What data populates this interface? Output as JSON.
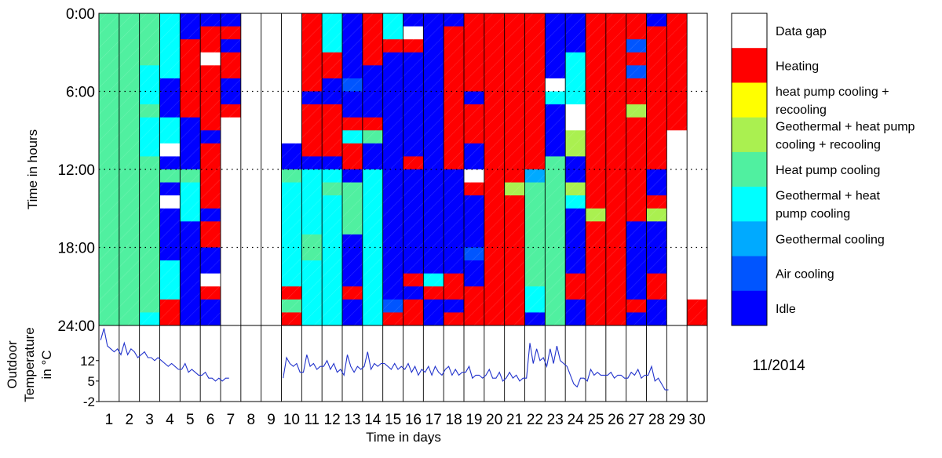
{
  "chart_data": {
    "type": "heatmap",
    "month_label": "11/2014",
    "ylabel_top": "Time in hours",
    "ylabel_bottom": [
      "Outdoor",
      "Temperature",
      "in °C"
    ],
    "xlabel": "Time in days",
    "y_ticks": [
      "0:00",
      "6:00",
      "12:00",
      "18:00",
      "24:00"
    ],
    "temp_ticks": [
      "12",
      "5",
      "-2"
    ],
    "temp_range": [
      -2,
      24
    ],
    "day_labels": [
      "1",
      "2",
      "3",
      "4",
      "5",
      "6",
      "7",
      "8",
      "9",
      "10",
      "11",
      "12",
      "13",
      "14",
      "15",
      "16",
      "17",
      "18",
      "19",
      "20",
      "21",
      "22",
      "23",
      "24",
      "25",
      "26",
      "27",
      "28",
      "29",
      "30"
    ],
    "legend": [
      {
        "key": "G",
        "label_lines": [
          "Data gap"
        ],
        "color": "#ffffff"
      },
      {
        "key": "H",
        "label_lines": [
          "Heating"
        ],
        "color": "#ff0000"
      },
      {
        "key": "Y",
        "label_lines": [
          "heat pump cooling +",
          "recooling"
        ],
        "color": "#ffff00"
      },
      {
        "key": "L",
        "label_lines": [
          "Geothermal + heat pump",
          "cooling + recooling"
        ],
        "color": "#aaf050"
      },
      {
        "key": "P",
        "label_lines": [
          "Heat pump cooling"
        ],
        "color": "#50f0a0"
      },
      {
        "key": "C",
        "label_lines": [
          "Geothermal + heat",
          "pump cooling"
        ],
        "color": "#00ffff"
      },
      {
        "key": "S",
        "label_lines": [
          "Geothermal cooling"
        ],
        "color": "#00aaff"
      },
      {
        "key": "A",
        "label_lines": [
          "Air cooling"
        ],
        "color": "#0055ff"
      },
      {
        "key": "I",
        "label_lines": [
          "Idle"
        ],
        "color": "#0000ff"
      }
    ],
    "slots_per_day": 24,
    "days": [
      "PPPPPPPPPPPPPPPPPPPPPPPP",
      "PPPPPPPPPPPPPPPPPPPPPPPP",
      "PPPPCCCPCCCPPPPPPPPPPPPC",
      "CCCCCIIICCGIPIGIIIICCCHH",
      "IIHHHHHHIIIIPCCCIIIIIIII",
      "IHHGHHHHHIHHHHHIHHIIGHII",
      "IHIHHIIHGGGGGGGGGGGGGGGG",
      "GGGGGGGGGGGGGGGGGGGGGGGG",
      "GGGGGGGGGGGGGGGGGGGGGGGG",
      "GGGGGGGGGGIIPCCCCCCCCHPH",
      "HHHHHHIHHHHICCCCCPPCCCCC",
      "CCCHHIIHHHHICPCCCCCCCCCC",
      "IIIIIAIIHCHHIPPPPIIIIHII",
      "HHHHIIIIHPIICCCCCCCCCCCC",
      "CCHIIIIIIIIIIIIIIIIIIIAH",
      "IGHIIIIIIIIHIIIIIIIIHIHH",
      "IIIIIIIIIIIIIIIIIIIICHII",
      "IHHHHHHHHHHHIIIIIIIIHHIH",
      "HHHHHHIHHHIIGHIIIIAIIHHH",
      "HHHHHHHHHHHHHHHHHHHHHHHH",
      "HHHHHHHHHHHHHLHHHHHHHHHH",
      "HHHHHHHHHHHHSPPPPPPPPCCI",
      "IIIIIGCIIIIPPPPPPPPPPPPP",
      "IIICCCCGGLLIILCIIIIIHHII",
      "HHHHHHHHHHHHHHHLHHHHHHHH",
      "HHHHHHHHHHHHHHHHHHHHHHHH",
      "HHAHAHHLHHHHHHHHIIIIIIHI",
      "IHHHHHHHHHHHIIHLIIIIHHII",
      "HHHHHHHHHGGGGGGGGGGGGGGG",
      "GGGGGGGGGGGGGGGGGGGGGGHH"
    ],
    "temperature": [
      {
        "day": 1,
        "values": [
          19,
          23,
          17,
          16,
          15,
          16
        ]
      },
      {
        "day": 2,
        "values": [
          14,
          18,
          14,
          16,
          15,
          13
        ]
      },
      {
        "day": 3,
        "values": [
          14,
          15,
          13,
          13,
          12,
          13
        ]
      },
      {
        "day": 4,
        "values": [
          12,
          11,
          10,
          11,
          10,
          9
        ]
      },
      {
        "day": 5,
        "values": [
          9,
          11,
          8,
          9,
          8,
          7
        ]
      },
      {
        "day": 6,
        "values": [
          7,
          8,
          6,
          6,
          5,
          6
        ]
      },
      {
        "day": 7,
        "values": [
          5,
          6,
          6
        ]
      },
      {
        "day": 10,
        "values": [
          6,
          13,
          11,
          10,
          11,
          8
        ]
      },
      {
        "day": 11,
        "values": [
          8,
          14,
          10,
          11,
          9,
          10
        ]
      },
      {
        "day": 12,
        "values": [
          10,
          12,
          9,
          11,
          8,
          9
        ]
      },
      {
        "day": 13,
        "values": [
          7,
          14,
          10,
          8,
          10,
          9
        ]
      },
      {
        "day": 14,
        "values": [
          10,
          15,
          9,
          11,
          10,
          11
        ]
      },
      {
        "day": 15,
        "values": [
          11,
          10,
          9,
          11,
          9,
          10
        ]
      },
      {
        "day": 16,
        "values": [
          9,
          11,
          8,
          10,
          7,
          9
        ]
      },
      {
        "day": 17,
        "values": [
          8,
          10,
          7,
          10,
          8,
          7
        ]
      },
      {
        "day": 18,
        "values": [
          9,
          10,
          7,
          9,
          7,
          8
        ]
      },
      {
        "day": 19,
        "values": [
          8,
          10,
          6,
          7,
          7,
          6
        ]
      },
      {
        "day": 20,
        "values": [
          7,
          9,
          6,
          6,
          8,
          5
        ]
      },
      {
        "day": 21,
        "values": [
          6,
          8,
          6,
          7,
          5,
          6
        ]
      },
      {
        "day": 22,
        "values": [
          6,
          18,
          11,
          16,
          12,
          13
        ]
      },
      {
        "day": 23,
        "values": [
          10,
          16,
          11,
          17,
          12,
          11
        ]
      },
      {
        "day": 24,
        "values": [
          10,
          7,
          4,
          3,
          6,
          6
        ]
      },
      {
        "day": 25,
        "values": [
          5,
          9,
          7,
          8,
          7,
          7
        ]
      },
      {
        "day": 26,
        "values": [
          7,
          8,
          6,
          7,
          7,
          6
        ]
      },
      {
        "day": 27,
        "values": [
          6,
          8,
          7,
          9,
          6,
          7
        ]
      },
      {
        "day": 28,
        "values": [
          7,
          10,
          5,
          6,
          4,
          2
        ]
      },
      {
        "day": 29,
        "values": [
          2
        ]
      }
    ]
  }
}
